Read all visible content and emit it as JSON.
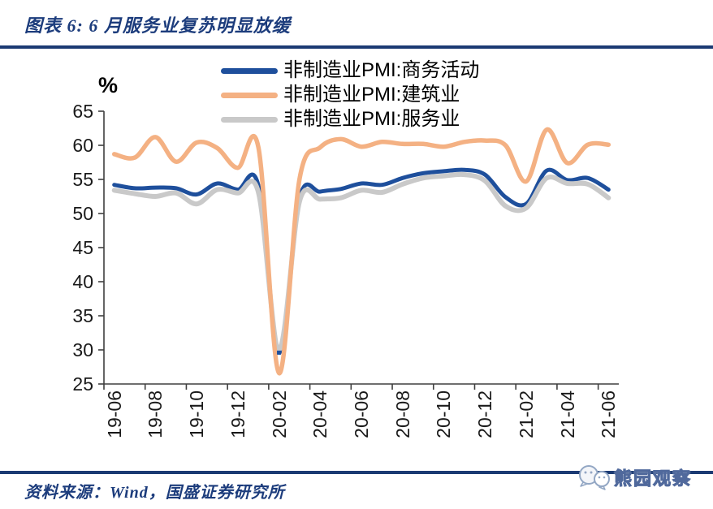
{
  "header": {
    "title": "图表 6: 6 月服务业复苏明显放缓"
  },
  "chart_data": {
    "type": "line",
    "title": "图表 6: 6 月服务业复苏明显放缓",
    "ylabel": "%",
    "ylim": [
      25,
      65
    ],
    "y_tick_step": 5,
    "y_tick_labels": [
      "65",
      "60",
      "55",
      "50",
      "45",
      "40",
      "35",
      "30",
      "25"
    ],
    "grid": false,
    "legend_position": "top",
    "x": [
      "19-06",
      "19-07",
      "19-08",
      "19-09",
      "19-10",
      "19-11",
      "19-12",
      "20-01",
      "20-02",
      "20-03",
      "20-04",
      "20-05",
      "20-06",
      "20-07",
      "20-08",
      "20-09",
      "20-10",
      "20-11",
      "20-12",
      "21-01",
      "21-02",
      "21-03",
      "21-04",
      "21-05",
      "21-06"
    ],
    "x_tick_labels": [
      "19-06",
      "19-08",
      "19-10",
      "19-12",
      "20-02",
      "20-04",
      "20-06",
      "20-08",
      "20-10",
      "20-12",
      "21-02",
      "21-04",
      "21-06"
    ],
    "series": [
      {
        "name": "非制造业PMI:商务活动",
        "color": "#1E4F9C",
        "values": [
          54.2,
          53.7,
          53.8,
          53.7,
          52.8,
          54.4,
          53.5,
          54.1,
          29.6,
          52.3,
          53.2,
          53.6,
          54.4,
          54.2,
          55.2,
          55.9,
          56.2,
          56.4,
          55.7,
          52.4,
          51.4,
          56.3,
          54.9,
          55.2,
          53.5
        ]
      },
      {
        "name": "非制造业PMI:建筑业",
        "color": "#F4B183",
        "values": [
          58.7,
          58.2,
          61.2,
          57.6,
          60.4,
          59.6,
          56.7,
          59.7,
          26.6,
          55.1,
          59.7,
          60.9,
          59.8,
          60.5,
          60.2,
          60.2,
          59.8,
          60.5,
          60.7,
          60.0,
          54.7,
          62.3,
          57.4,
          60.1,
          60.1
        ]
      },
      {
        "name": "非制造业PMI:服务业",
        "color": "#C9C9C9",
        "values": [
          53.4,
          52.9,
          52.5,
          53.0,
          51.4,
          53.5,
          53.0,
          53.1,
          30.1,
          51.8,
          52.1,
          52.3,
          53.4,
          53.1,
          54.3,
          55.2,
          55.5,
          55.7,
          54.8,
          51.1,
          50.8,
          55.2,
          54.4,
          54.3,
          52.3
        ]
      }
    ],
    "dip_marker": {
      "series_index": 0,
      "x_index": 8
    },
    "axis_color": "#3f3f3f"
  },
  "footer": {
    "source": "资料来源：Wind，国盛证券研究所"
  },
  "watermark": {
    "icon": "chat-bubbles-icon",
    "text": "熊园观察"
  },
  "colors": {
    "rule_blue": "#1b3a73",
    "title_blue": "#1c3c7c"
  }
}
